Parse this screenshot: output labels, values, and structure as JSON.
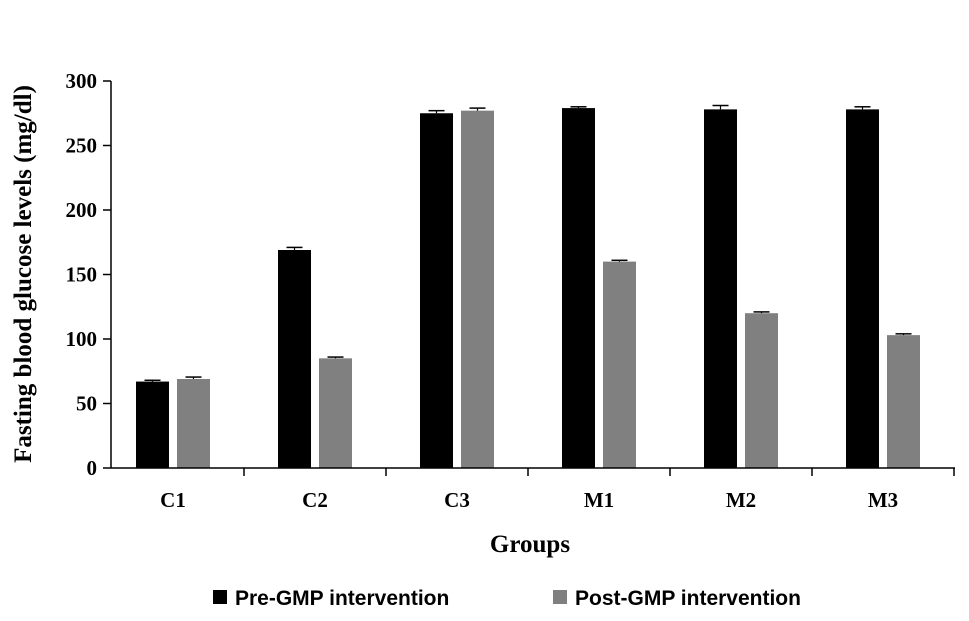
{
  "chart_data": {
    "type": "bar",
    "title": "",
    "xlabel": "Groups",
    "ylabel": "Fasting blood glucose levels (mg/dl)",
    "categories": [
      "C1",
      "C2",
      "C3",
      "M1",
      "M2",
      "M3"
    ],
    "ylim": [
      0,
      300
    ],
    "yticks": [
      0,
      50,
      100,
      150,
      200,
      250,
      300
    ],
    "grid": false,
    "legend_position": "bottom",
    "error_bars": true,
    "series": [
      {
        "name": "Pre-GMP intervention",
        "color": "#000000",
        "values": [
          67,
          169,
          275,
          279,
          278,
          278
        ],
        "errors": [
          1,
          2,
          2,
          1,
          3,
          2
        ]
      },
      {
        "name": "Post-GMP intervention",
        "color": "#808080",
        "values": [
          69,
          85,
          277,
          160,
          120,
          103
        ],
        "errors": [
          1.5,
          1,
          2,
          1,
          1,
          1
        ]
      }
    ]
  }
}
